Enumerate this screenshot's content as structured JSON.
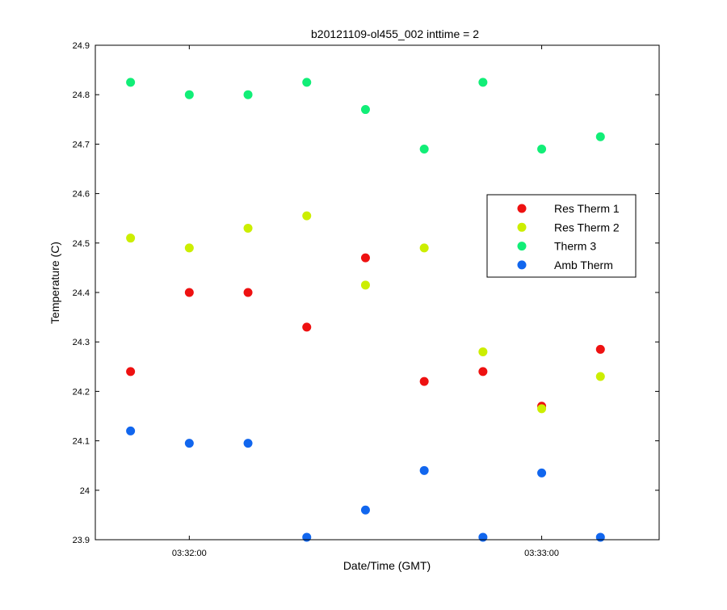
{
  "chart_data": {
    "type": "scatter",
    "title": "b20121109-ol455_002 inttime = 2",
    "xlabel": "Date/Time (GMT)",
    "ylabel": "Temperature (C)",
    "x_unit": "time of day (GMT)",
    "xlim": [
      "03:31:44",
      "03:33:20"
    ],
    "ylim": [
      23.9,
      24.9
    ],
    "x_ticks": [
      "03:32:00",
      "03:33:00"
    ],
    "y_ticks": [
      "23.9",
      "24",
      "24.1",
      "24.2",
      "24.3",
      "24.4",
      "24.5",
      "24.6",
      "24.7",
      "24.8",
      "24.9"
    ],
    "grid": false,
    "legend_position": "right",
    "x": [
      "03:31:50",
      "03:32:00",
      "03:32:10",
      "03:32:20",
      "03:32:30",
      "03:32:40",
      "03:32:50",
      "03:33:00",
      "03:33:10"
    ],
    "series": [
      {
        "name": "Res Therm 1",
        "color": "#ee1111",
        "points": [
          {
            "x": "03:31:50",
            "y": 24.24
          },
          {
            "x": "03:32:00",
            "y": 24.4
          },
          {
            "x": "03:32:10",
            "y": 24.4
          },
          {
            "x": "03:32:20",
            "y": 24.33
          },
          {
            "x": "03:32:30",
            "y": 24.47
          },
          {
            "x": "03:32:40",
            "y": 24.22
          },
          {
            "x": "03:32:50",
            "y": 24.24
          },
          {
            "x": "03:33:00",
            "y": 24.17
          },
          {
            "x": "03:33:10",
            "y": 24.285
          }
        ]
      },
      {
        "name": "Res Therm 2",
        "color": "#ccee00",
        "points": [
          {
            "x": "03:31:50",
            "y": 24.51
          },
          {
            "x": "03:32:00",
            "y": 24.49
          },
          {
            "x": "03:32:10",
            "y": 24.53
          },
          {
            "x": "03:32:20",
            "y": 24.555
          },
          {
            "x": "03:32:30",
            "y": 24.415
          },
          {
            "x": "03:32:40",
            "y": 24.49
          },
          {
            "x": "03:32:50",
            "y": 24.28
          },
          {
            "x": "03:33:00",
            "y": 24.165
          },
          {
            "x": "03:33:10",
            "y": 24.23
          }
        ]
      },
      {
        "name": "Therm 3",
        "color": "#11ee77",
        "points": [
          {
            "x": "03:31:50",
            "y": 24.825
          },
          {
            "x": "03:32:00",
            "y": 24.8
          },
          {
            "x": "03:32:10",
            "y": 24.8
          },
          {
            "x": "03:32:20",
            "y": 24.825
          },
          {
            "x": "03:32:30",
            "y": 24.77
          },
          {
            "x": "03:32:40",
            "y": 24.69
          },
          {
            "x": "03:32:50",
            "y": 24.825
          },
          {
            "x": "03:33:00",
            "y": 24.69
          },
          {
            "x": "03:33:10",
            "y": 24.715
          }
        ]
      },
      {
        "name": "Amb Therm",
        "color": "#1166ee",
        "points": [
          {
            "x": "03:31:50",
            "y": 24.12
          },
          {
            "x": "03:32:00",
            "y": 24.095
          },
          {
            "x": "03:32:10",
            "y": 24.095
          },
          {
            "x": "03:32:20",
            "y": 23.905
          },
          {
            "x": "03:32:30",
            "y": 23.96
          },
          {
            "x": "03:32:40",
            "y": 24.04
          },
          {
            "x": "03:32:50",
            "y": 23.905
          },
          {
            "x": "03:33:00",
            "y": 24.035
          },
          {
            "x": "03:33:10",
            "y": 23.905
          }
        ]
      }
    ]
  }
}
